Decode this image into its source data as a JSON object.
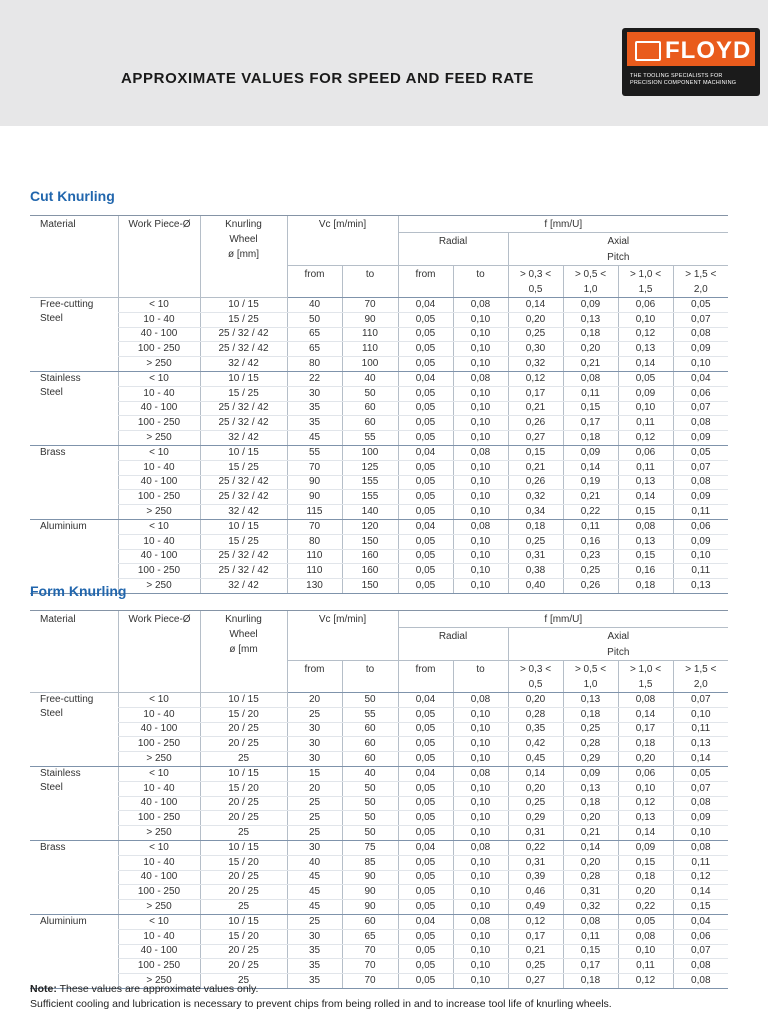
{
  "header": {
    "title": "APPROXIMATE VALUES FOR SPEED AND FEED RATE",
    "logo": {
      "brand": "FLOYD",
      "tagline": [
        "THE TOOLING SPECIALISTS FOR",
        "PRECISION COMPONENT MACHINING"
      ]
    }
  },
  "tables": [
    {
      "heading": "Cut Knurling",
      "columns": {
        "material": "Material",
        "work_piece": "Work Piece-Ø",
        "wheel": [
          "Knurling",
          "Wheel",
          "ø [mm]"
        ],
        "vc": "Vc [m/min]",
        "f": "f [mm/U]",
        "radial": "Radial",
        "axial": "Axial",
        "pitch": "Pitch",
        "sub": [
          "from",
          "to",
          "from",
          "to"
        ],
        "pitch_ranges": [
          [
            "> 0,3 <",
            "0,5"
          ],
          [
            "> 0,5 <",
            "1,0"
          ],
          [
            "> 1,0 <",
            "1,5"
          ],
          [
            "> 1,5 <",
            "2,0"
          ]
        ]
      },
      "groups": [
        {
          "material": [
            "Free-cutting",
            "Steel"
          ],
          "rows": [
            [
              "< 10",
              "10 / 15",
              "40",
              "70",
              "0,04",
              "0,08",
              "0,14",
              "0,09",
              "0,06",
              "0,05"
            ],
            [
              "10 - 40",
              "15 / 25",
              "50",
              "90",
              "0,05",
              "0,10",
              "0,20",
              "0,13",
              "0,10",
              "0,07"
            ],
            [
              "40 - 100",
              "25 / 32 / 42",
              "65",
              "110",
              "0,05",
              "0,10",
              "0,25",
              "0,18",
              "0,12",
              "0,08"
            ],
            [
              "100 - 250",
              "25 / 32 / 42",
              "65",
              "110",
              "0,05",
              "0,10",
              "0,30",
              "0,20",
              "0,13",
              "0,09"
            ],
            [
              "> 250",
              "32 / 42",
              "80",
              "100",
              "0,05",
              "0,10",
              "0,32",
              "0,21",
              "0,14",
              "0,10"
            ]
          ]
        },
        {
          "material": [
            "Stainless",
            "Steel"
          ],
          "rows": [
            [
              "< 10",
              "10 / 15",
              "22",
              "40",
              "0,04",
              "0,08",
              "0,12",
              "0,08",
              "0,05",
              "0,04"
            ],
            [
              "10 - 40",
              "15 / 25",
              "30",
              "50",
              "0,05",
              "0,10",
              "0,17",
              "0,11",
              "0,09",
              "0,06"
            ],
            [
              "40 - 100",
              "25 / 32 / 42",
              "35",
              "60",
              "0,05",
              "0,10",
              "0,21",
              "0,15",
              "0,10",
              "0,07"
            ],
            [
              "100 - 250",
              "25 / 32 / 42",
              "35",
              "60",
              "0,05",
              "0,10",
              "0,26",
              "0,17",
              "0,11",
              "0,08"
            ],
            [
              "> 250",
              "32 / 42",
              "45",
              "55",
              "0,05",
              "0,10",
              "0,27",
              "0,18",
              "0,12",
              "0,09"
            ]
          ]
        },
        {
          "material": [
            "Brass"
          ],
          "rows": [
            [
              "< 10",
              "10 / 15",
              "55",
              "100",
              "0,04",
              "0,08",
              "0,15",
              "0,09",
              "0,06",
              "0,05"
            ],
            [
              "10 - 40",
              "15 / 25",
              "70",
              "125",
              "0,05",
              "0,10",
              "0,21",
              "0,14",
              "0,11",
              "0,07"
            ],
            [
              "40 - 100",
              "25 / 32 / 42",
              "90",
              "155",
              "0,05",
              "0,10",
              "0,26",
              "0,19",
              "0,13",
              "0,08"
            ],
            [
              "100 - 250",
              "25 / 32 / 42",
              "90",
              "155",
              "0,05",
              "0,10",
              "0,32",
              "0,21",
              "0,14",
              "0,09"
            ],
            [
              "> 250",
              "32 / 42",
              "115",
              "140",
              "0,05",
              "0,10",
              "0,34",
              "0,22",
              "0,15",
              "0,11"
            ]
          ]
        },
        {
          "material": [
            "Aluminium"
          ],
          "rows": [
            [
              "< 10",
              "10 / 15",
              "70",
              "120",
              "0,04",
              "0,08",
              "0,18",
              "0,11",
              "0,08",
              "0,06"
            ],
            [
              "10 - 40",
              "15 / 25",
              "80",
              "150",
              "0,05",
              "0,10",
              "0,25",
              "0,16",
              "0,13",
              "0,09"
            ],
            [
              "40 - 100",
              "25 / 32 / 42",
              "110",
              "160",
              "0,05",
              "0,10",
              "0,31",
              "0,23",
              "0,15",
              "0,10"
            ],
            [
              "100 - 250",
              "25 / 32 / 42",
              "110",
              "160",
              "0,05",
              "0,10",
              "0,38",
              "0,25",
              "0,16",
              "0,11"
            ],
            [
              "> 250",
              "32 / 42",
              "130",
              "150",
              "0,05",
              "0,10",
              "0,40",
              "0,26",
              "0,18",
              "0,13"
            ]
          ]
        }
      ]
    },
    {
      "heading": "Form Knurling",
      "columns": {
        "material": "Material",
        "work_piece": "Work Piece-Ø",
        "wheel": [
          "Knurling",
          "Wheel",
          "ø [mm"
        ],
        "vc": "Vc [m/min]",
        "f": "f [mm/U]",
        "radial": "Radial",
        "axial": "Axial",
        "pitch": "Pitch",
        "sub": [
          "from",
          "to",
          "from",
          "to"
        ],
        "pitch_ranges": [
          [
            "> 0,3 <",
            "0,5"
          ],
          [
            "> 0,5 <",
            "1,0"
          ],
          [
            "> 1,0 <",
            "1,5"
          ],
          [
            "> 1,5 <",
            "2,0"
          ]
        ]
      },
      "groups": [
        {
          "material": [
            "Free-cutting",
            "Steel"
          ],
          "rows": [
            [
              "< 10",
              "10 / 15",
              "20",
              "50",
              "0,04",
              "0,08",
              "0,20",
              "0,13",
              "0,08",
              "0,07"
            ],
            [
              "10 - 40",
              "15 / 20",
              "25",
              "55",
              "0,05",
              "0,10",
              "0,28",
              "0,18",
              "0,14",
              "0,10"
            ],
            [
              "40 - 100",
              "20 / 25",
              "30",
              "60",
              "0,05",
              "0,10",
              "0,35",
              "0,25",
              "0,17",
              "0,11"
            ],
            [
              "100 - 250",
              "20 / 25",
              "30",
              "60",
              "0,05",
              "0,10",
              "0,42",
              "0,28",
              "0,18",
              "0,13"
            ],
            [
              "> 250",
              "25",
              "30",
              "60",
              "0,05",
              "0,10",
              "0,45",
              "0,29",
              "0,20",
              "0,14"
            ]
          ]
        },
        {
          "material": [
            "Stainless",
            "Steel"
          ],
          "rows": [
            [
              "< 10",
              "10 / 15",
              "15",
              "40",
              "0,04",
              "0,08",
              "0,14",
              "0,09",
              "0,06",
              "0,05"
            ],
            [
              "10 - 40",
              "15 / 20",
              "20",
              "50",
              "0,05",
              "0,10",
              "0,20",
              "0,13",
              "0,10",
              "0,07"
            ],
            [
              "40 - 100",
              "20 / 25",
              "25",
              "50",
              "0,05",
              "0,10",
              "0,25",
              "0,18",
              "0,12",
              "0,08"
            ],
            [
              "100 - 250",
              "20 / 25",
              "25",
              "50",
              "0,05",
              "0,10",
              "0,29",
              "0,20",
              "0,13",
              "0,09"
            ],
            [
              "> 250",
              "25",
              "25",
              "50",
              "0,05",
              "0,10",
              "0,31",
              "0,21",
              "0,14",
              "0,10"
            ]
          ]
        },
        {
          "material": [
            "Brass"
          ],
          "rows": [
            [
              "< 10",
              "10 / 15",
              "30",
              "75",
              "0,04",
              "0,08",
              "0,22",
              "0,14",
              "0,09",
              "0,08"
            ],
            [
              "10 - 40",
              "15 / 20",
              "40",
              "85",
              "0,05",
              "0,10",
              "0,31",
              "0,20",
              "0,15",
              "0,11"
            ],
            [
              "40 - 100",
              "20 / 25",
              "45",
              "90",
              "0,05",
              "0,10",
              "0,39",
              "0,28",
              "0,18",
              "0,12"
            ],
            [
              "100 - 250",
              "20 / 25",
              "45",
              "90",
              "0,05",
              "0,10",
              "0,46",
              "0,31",
              "0,20",
              "0,14"
            ],
            [
              "> 250",
              "25",
              "45",
              "90",
              "0,05",
              "0,10",
              "0,49",
              "0,32",
              "0,22",
              "0,15"
            ]
          ]
        },
        {
          "material": [
            "Aluminium"
          ],
          "rows": [
            [
              "< 10",
              "10 / 15",
              "25",
              "60",
              "0,04",
              "0,08",
              "0,12",
              "0,08",
              "0,05",
              "0,04"
            ],
            [
              "10 - 40",
              "15 / 20",
              "30",
              "65",
              "0,05",
              "0,10",
              "0,17",
              "0,11",
              "0,08",
              "0,06"
            ],
            [
              "40 - 100",
              "20 / 25",
              "35",
              "70",
              "0,05",
              "0,10",
              "0,21",
              "0,15",
              "0,10",
              "0,07"
            ],
            [
              "100 - 250",
              "20 / 25",
              "35",
              "70",
              "0,05",
              "0,10",
              "0,25",
              "0,17",
              "0,11",
              "0,08"
            ],
            [
              "> 250",
              "25",
              "35",
              "70",
              "0,05",
              "0,10",
              "0,27",
              "0,18",
              "0,12",
              "0,08"
            ]
          ]
        }
      ]
    }
  ],
  "note": {
    "label": "Note:",
    "text": "These values are approximate values only.",
    "text2": "Sufficient cooling and lubrication is necessary to prevent chips from being rolled in and to increase tool life of knurling wheels."
  }
}
